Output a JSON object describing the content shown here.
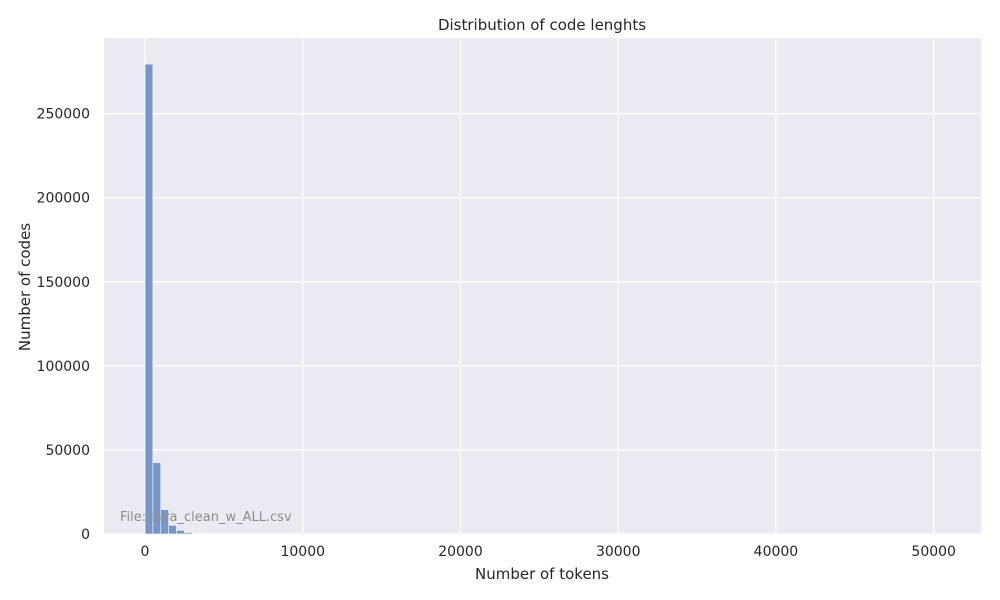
{
  "chart_data": {
    "type": "bar",
    "subtype": "histogram",
    "title": "Distribution of code lenghts",
    "xlabel": "Number of tokens",
    "ylabel": "Number of codes",
    "xlim": [
      -2600,
      53000
    ],
    "ylim": [
      0,
      295000
    ],
    "x_ticks": [
      0,
      10000,
      20000,
      30000,
      40000,
      50000
    ],
    "y_ticks": [
      0,
      50000,
      100000,
      150000,
      200000,
      250000
    ],
    "bin_width": 500,
    "bins": [
      {
        "x_start": 0,
        "x_end": 500,
        "count": 279500
      },
      {
        "x_start": 500,
        "x_end": 1000,
        "count": 42500
      },
      {
        "x_start": 1000,
        "x_end": 1500,
        "count": 14500
      },
      {
        "x_start": 1500,
        "x_end": 2000,
        "count": 5200
      },
      {
        "x_start": 2000,
        "x_end": 2500,
        "count": 2200
      },
      {
        "x_start": 2500,
        "x_end": 3000,
        "count": 900
      },
      {
        "x_start": 3000,
        "x_end": 3500,
        "count": 400
      },
      {
        "x_start": 3500,
        "x_end": 4000,
        "count": 200
      },
      {
        "x_start": 4000,
        "x_end": 4500,
        "count": 100
      }
    ],
    "grid": true,
    "style": {
      "background": "#eaeaf2",
      "bar_color": "#7896c8",
      "grid_color": "#ffffff"
    },
    "annotation": "File: java_clean_w_ALL.csv"
  }
}
